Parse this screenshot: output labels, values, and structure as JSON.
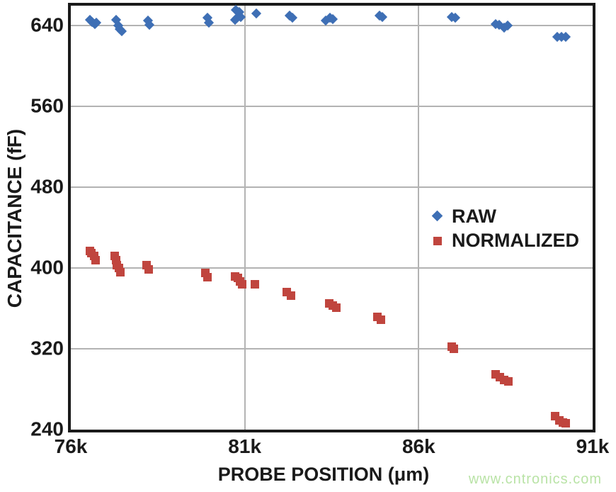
{
  "watermark": "www.cntronics.com",
  "palette": {
    "raw_blue": "#3E6FB5",
    "normalized_red": "#C0453E",
    "gridline_gray": "#b3b3b3",
    "axis_black": "#1a1a1a",
    "watermark_green": "#b9e3a6",
    "background": "#ffffff"
  },
  "chart_data": {
    "type": "scatter",
    "title": "",
    "xlabel": "PROBE POSITION (μm)",
    "ylabel": "CAPACITANCE (fF)",
    "x_unit_note": "x values are probe position in thousands of μm (axis labels use k suffix)",
    "xlim": [
      76,
      91
    ],
    "ylim": [
      240,
      660
    ],
    "grid": true,
    "x_ticks": [
      {
        "v": 76,
        "label": "76k"
      },
      {
        "v": 81,
        "label": "81k"
      },
      {
        "v": 86,
        "label": "86k"
      },
      {
        "v": 91,
        "label": "91k"
      }
    ],
    "y_ticks": [
      {
        "v": 640,
        "label": "640"
      },
      {
        "v": 560,
        "label": "560"
      },
      {
        "v": 480,
        "label": "480"
      },
      {
        "v": 400,
        "label": "400"
      },
      {
        "v": 320,
        "label": "320"
      },
      {
        "v": 240,
        "label": "240"
      }
    ],
    "x_gridlines": [
      81,
      86
    ],
    "y_gridlines": [
      320,
      400,
      480,
      560,
      640
    ],
    "legend_position": "center-right-inside",
    "legend": [
      {
        "label": "RAW",
        "marker": "diamond",
        "color": "#3E6FB5"
      },
      {
        "label": "NORMALIZED",
        "marker": "square",
        "color": "#C0453E"
      }
    ],
    "series": [
      {
        "name": "RAW",
        "marker": "diamond",
        "color": "#3E6FB5",
        "points": [
          [
            76.55,
            646
          ],
          [
            76.62,
            644
          ],
          [
            76.69,
            642
          ],
          [
            76.74,
            643
          ],
          [
            77.31,
            646
          ],
          [
            77.36,
            640
          ],
          [
            77.41,
            637
          ],
          [
            77.46,
            635
          ],
          [
            78.21,
            645
          ],
          [
            78.25,
            641
          ],
          [
            79.93,
            648
          ],
          [
            79.97,
            643
          ],
          [
            80.72,
            646
          ],
          [
            80.75,
            656
          ],
          [
            80.78,
            648
          ],
          [
            80.85,
            654
          ],
          [
            80.88,
            649
          ],
          [
            81.33,
            652
          ],
          [
            82.28,
            650
          ],
          [
            82.38,
            648
          ],
          [
            83.33,
            645
          ],
          [
            83.44,
            648
          ],
          [
            83.54,
            647
          ],
          [
            84.88,
            650
          ],
          [
            84.96,
            649
          ],
          [
            86.94,
            649
          ],
          [
            87.06,
            648
          ],
          [
            88.21,
            642
          ],
          [
            88.32,
            641
          ],
          [
            88.45,
            638
          ],
          [
            88.56,
            640
          ],
          [
            89.99,
            629
          ],
          [
            90.11,
            629
          ],
          [
            90.23,
            629
          ]
        ]
      },
      {
        "name": "NORMALIZED",
        "marker": "square",
        "color": "#C0453E",
        "points": [
          [
            76.54,
            417
          ],
          [
            76.6,
            415
          ],
          [
            76.67,
            412
          ],
          [
            76.72,
            408
          ],
          [
            77.26,
            412
          ],
          [
            77.3,
            408
          ],
          [
            77.33,
            403
          ],
          [
            77.38,
            400
          ],
          [
            77.43,
            396
          ],
          [
            78.17,
            403
          ],
          [
            78.23,
            399
          ],
          [
            79.87,
            395
          ],
          [
            79.93,
            391
          ],
          [
            80.73,
            392
          ],
          [
            80.8,
            390
          ],
          [
            80.86,
            387
          ],
          [
            80.93,
            384
          ],
          [
            81.29,
            384
          ],
          [
            82.21,
            376
          ],
          [
            82.33,
            373
          ],
          [
            83.42,
            365
          ],
          [
            83.53,
            363
          ],
          [
            83.63,
            361
          ],
          [
            84.82,
            352
          ],
          [
            84.92,
            349
          ],
          [
            86.94,
            322
          ],
          [
            87.02,
            320
          ],
          [
            88.22,
            295
          ],
          [
            88.34,
            292
          ],
          [
            88.46,
            289
          ],
          [
            88.57,
            288
          ],
          [
            89.92,
            253
          ],
          [
            90.04,
            249
          ],
          [
            90.15,
            247
          ],
          [
            90.23,
            246
          ]
        ]
      }
    ]
  }
}
